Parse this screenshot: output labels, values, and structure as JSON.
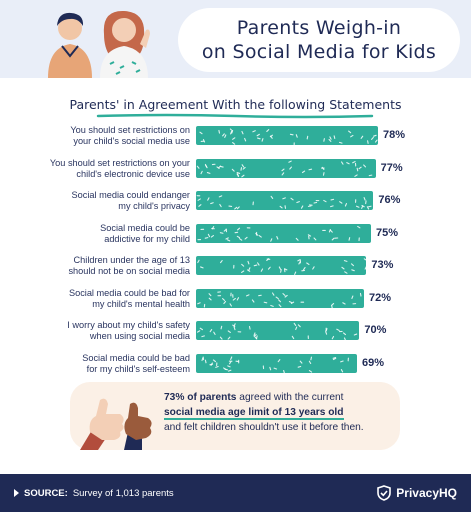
{
  "header": {
    "title_line1": "Parents Weigh-in",
    "title_line2": "on Social Media for Kids"
  },
  "chart_data": {
    "type": "bar",
    "orientation": "horizontal",
    "title": "Parents' in Agreement With the following Statements",
    "categories": [
      [
        "You should set restrictions on",
        "your child's social media use"
      ],
      [
        "You should set restrictions on your",
        "child's electronic device use"
      ],
      [
        "Social media could endanger",
        "my child's privacy"
      ],
      [
        "Social media could be",
        "addictive for my child"
      ],
      [
        "Children under the age of 13",
        "should not be on social media"
      ],
      [
        "Social media could be bad for",
        "my child's mental health"
      ],
      [
        "I worry about my child's safety",
        "when using social media"
      ],
      [
        "Social media could be bad",
        "for my child's self-esteem"
      ]
    ],
    "values": [
      78,
      77,
      76,
      75,
      73,
      72,
      70,
      69
    ],
    "value_labels": [
      "78%",
      "77%",
      "76%",
      "75%",
      "73%",
      "72%",
      "70%",
      "69%"
    ],
    "bar_color": "#2fae9a",
    "xlim": [
      0,
      100
    ],
    "grid": false
  },
  "fact": {
    "part1": "73% of parents",
    "part2": " agreed with the current",
    "part3": "social media age limit of 13 years old",
    "part4": "and felt children shouldn't use it before then."
  },
  "footer": {
    "source_label": "SOURCE:",
    "source_text": "Survey of 1,013 parents",
    "brand": "PrivacyHQ"
  },
  "colors": {
    "navy": "#1f2a55",
    "teal": "#2fae9a",
    "header_bg": "#e9eef8",
    "fact_bg": "#fbf0e6"
  },
  "icons": [
    "parents-illustration",
    "thumbs-up-hands-illustration",
    "privacyhq-shield-logo",
    "source-arrow-icon"
  ]
}
